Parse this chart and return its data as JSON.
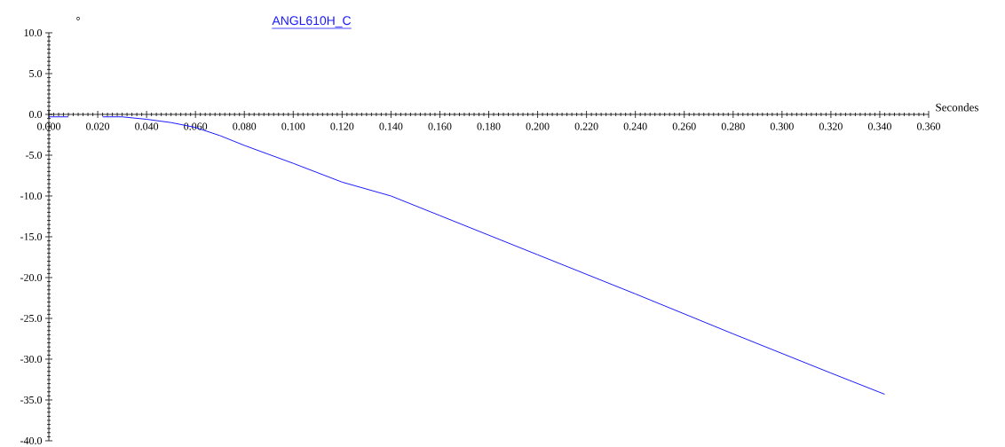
{
  "chart_data": {
    "type": "line",
    "xlabel": "Secondes",
    "ylabel": "°",
    "x": [
      0,
      0.008,
      0.015,
      0.022,
      0.03,
      0.04,
      0.05,
      0.06,
      0.07,
      0.08,
      0.09,
      0.1,
      0.12,
      0.14,
      0.16,
      0.2,
      0.24,
      0.28,
      0.32,
      0.342
    ],
    "series": [
      {
        "name": "ANGL610H_C",
        "color": "#1a1aff",
        "values": [
          -0.3,
          -0.3,
          null,
          -0.3,
          -0.3,
          -0.6,
          -1.0,
          -1.6,
          -2.6,
          -3.8,
          -4.9,
          -6.0,
          -8.3,
          -10.0,
          -12.4,
          -17.2,
          -22.0,
          -26.9,
          -31.7,
          -34.3
        ]
      }
    ],
    "xlim": [
      0,
      0.36
    ],
    "ylim": [
      -40,
      10
    ],
    "xticks": [
      {
        "value": 0,
        "label": "0.000"
      },
      {
        "value": 0.02,
        "label": "0.020"
      },
      {
        "value": 0.04,
        "label": "0.040"
      },
      {
        "value": 0.06,
        "label": "0.060"
      },
      {
        "value": 0.08,
        "label": "0.080"
      },
      {
        "value": 0.1,
        "label": "0.100"
      },
      {
        "value": 0.12,
        "label": "0.120"
      },
      {
        "value": 0.14,
        "label": "0.140"
      },
      {
        "value": 0.16,
        "label": "0.160"
      },
      {
        "value": 0.18,
        "label": "0.180"
      },
      {
        "value": 0.2,
        "label": "0.200"
      },
      {
        "value": 0.22,
        "label": "0.220"
      },
      {
        "value": 0.24,
        "label": "0.240"
      },
      {
        "value": 0.26,
        "label": "0.260"
      },
      {
        "value": 0.28,
        "label": "0.280"
      },
      {
        "value": 0.3,
        "label": "0.300"
      },
      {
        "value": 0.32,
        "label": "0.320"
      },
      {
        "value": 0.34,
        "label": "0.340"
      },
      {
        "value": 0.36,
        "label": "0.360"
      }
    ],
    "yticks": [
      {
        "value": 10,
        "label": "10.0"
      },
      {
        "value": 5,
        "label": "5.0"
      },
      {
        "value": 0,
        "label": "0.0"
      },
      {
        "value": -5,
        "label": "-5.0"
      },
      {
        "value": -10,
        "label": "-10.0"
      },
      {
        "value": -15,
        "label": "-15.0"
      },
      {
        "value": -20,
        "label": "-20.0"
      },
      {
        "value": -25,
        "label": "-25.0"
      },
      {
        "value": -30,
        "label": "-30.0"
      },
      {
        "value": -35,
        "label": "-35.0"
      },
      {
        "value": -40,
        "label": "-40.0"
      }
    ],
    "legend": "top",
    "grid": false,
    "marker": "none",
    "line_style": "solid"
  }
}
